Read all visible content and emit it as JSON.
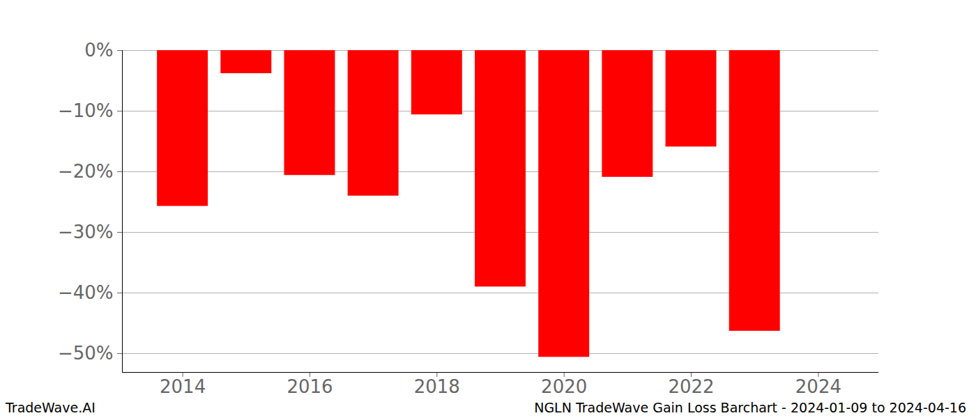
{
  "chart_data": {
    "type": "bar",
    "title": "NGLN TradeWave Gain Loss Barchart - 2024-01-09 to 2024-04-16",
    "annotations": [
      "TradeWave.AI"
    ],
    "x": [
      2014,
      2015,
      2016,
      2017,
      2018,
      2019,
      2020,
      2021,
      2022,
      2023
    ],
    "values": [
      -25.7,
      -3.8,
      -20.6,
      -24.0,
      -10.6,
      -39.0,
      -50.6,
      -20.9,
      -15.9,
      -46.3
    ],
    "color": "#ff0000",
    "xlim": [
      2013.05,
      2024.95
    ],
    "xticks": [
      2014,
      2016,
      2018,
      2020,
      2022,
      2024
    ],
    "ylim": [
      -53.1,
      0
    ],
    "yticks": [
      {
        "value": 0,
        "label": "0%"
      },
      {
        "value": -10,
        "label": "−10%"
      },
      {
        "value": -20,
        "label": "−20%"
      },
      {
        "value": -30,
        "label": "−30%"
      },
      {
        "value": -40,
        "label": "−40%"
      },
      {
        "value": -50,
        "label": "−50%"
      }
    ],
    "grid": true
  }
}
